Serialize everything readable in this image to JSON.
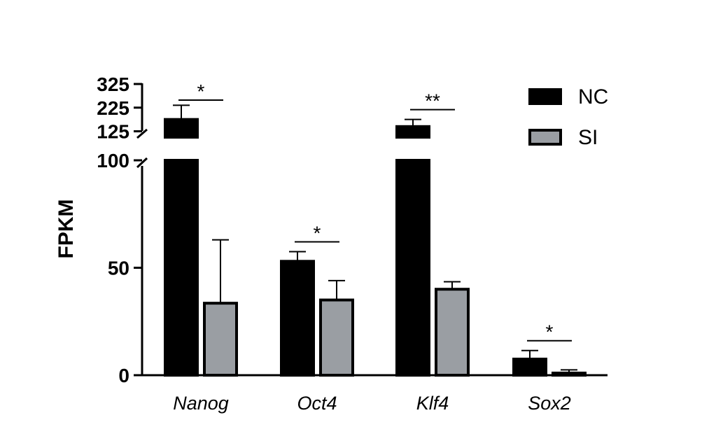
{
  "chart_data": {
    "type": "bar",
    "title": "",
    "xlabel": "",
    "ylabel": "FPKM",
    "categories": [
      "Nanog",
      "Oct4",
      "Klf4",
      "Sox2"
    ],
    "series": [
      {
        "name": "NC",
        "color": "#000000",
        "values": [
          175,
          53,
          145,
          7.5
        ],
        "errors": [
          60,
          4.5,
          30,
          4
        ]
      },
      {
        "name": "SI",
        "color": "#9a9ea3",
        "values": [
          33.5,
          35,
          40,
          1
        ],
        "errors": [
          29.5,
          9,
          3.5,
          1.5
        ]
      }
    ],
    "y_axis": {
      "broken": true,
      "lower_segment": {
        "range": [
          0,
          100
        ],
        "ticks": [
          0,
          50,
          100
        ]
      },
      "upper_segment": {
        "range": [
          100,
          325
        ],
        "ticks": [
          125,
          225,
          325
        ]
      }
    },
    "significance": [
      "*",
      "*",
      "**",
      "*"
    ],
    "legend": {
      "position": "top-right"
    },
    "grid": false
  }
}
